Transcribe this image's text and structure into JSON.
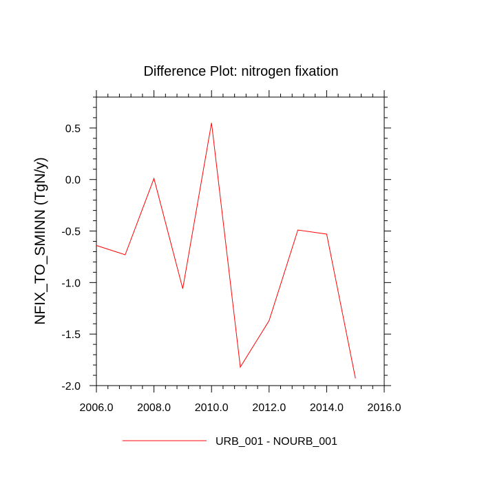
{
  "chart_data": {
    "type": "line",
    "title": "Difference Plot: nitrogen fixation",
    "xlabel": "",
    "ylabel": "NFIX_TO_SMINN  (TgN/y)",
    "xlim": [
      2006,
      2016
    ],
    "ylim": [
      -2.0,
      0.8
    ],
    "xticks": [
      2006,
      2008,
      2010,
      2012,
      2014,
      2016
    ],
    "xtick_labels": [
      "2006.0",
      "2008.0",
      "2010.0",
      "2012.0",
      "2014.0",
      "2016.0"
    ],
    "yticks": [
      0.5,
      0.0,
      -0.5,
      -1.0,
      -1.5,
      -2.0
    ],
    "ytick_labels": [
      "0.5",
      "0.0",
      "-0.5",
      "-1.0",
      "-1.5",
      "-2.0"
    ],
    "grid": false,
    "legend_position": "bottom",
    "series": [
      {
        "name": "URB_001 - NOURB_001",
        "color": "#ff0000",
        "x": [
          2006,
          2007,
          2008,
          2009,
          2010,
          2011,
          2012,
          2013,
          2014,
          2015
        ],
        "y": [
          -0.64,
          -0.73,
          0.01,
          -1.06,
          0.55,
          -1.82,
          -1.37,
          -0.49,
          -0.53,
          -1.93
        ]
      }
    ]
  }
}
